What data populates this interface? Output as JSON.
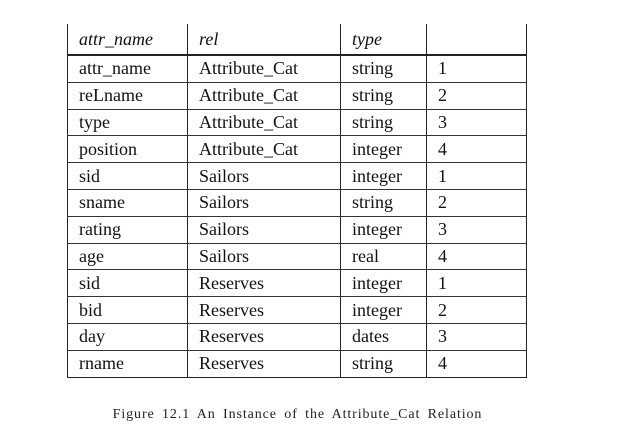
{
  "table": {
    "headers": [
      "attr_name",
      "rel",
      "type",
      ""
    ],
    "rows": [
      [
        "attr_name",
        "Attribute_Cat",
        "string",
        "1"
      ],
      [
        "reLname",
        "Attribute_Cat",
        "string",
        "2"
      ],
      [
        "type",
        "Attribute_Cat",
        "string",
        "3"
      ],
      [
        "position",
        "Attribute_Cat",
        "integer",
        "4"
      ],
      [
        "sid",
        "Sailors",
        "integer",
        "1"
      ],
      [
        "sname",
        "Sailors",
        "string",
        "2"
      ],
      [
        "rating",
        "Sailors",
        "integer",
        "3"
      ],
      [
        "age",
        "Sailors",
        "real",
        "4"
      ],
      [
        "sid",
        "Reserves",
        "integer",
        "1"
      ],
      [
        "bid",
        "Reserves",
        "integer",
        "2"
      ],
      [
        "day",
        "Reserves",
        "dates",
        "3"
      ],
      [
        "rname",
        "Reserves",
        "string",
        "4"
      ]
    ]
  },
  "caption": "Figure 12.1   An Instance of the Attribute_Cat Relation"
}
